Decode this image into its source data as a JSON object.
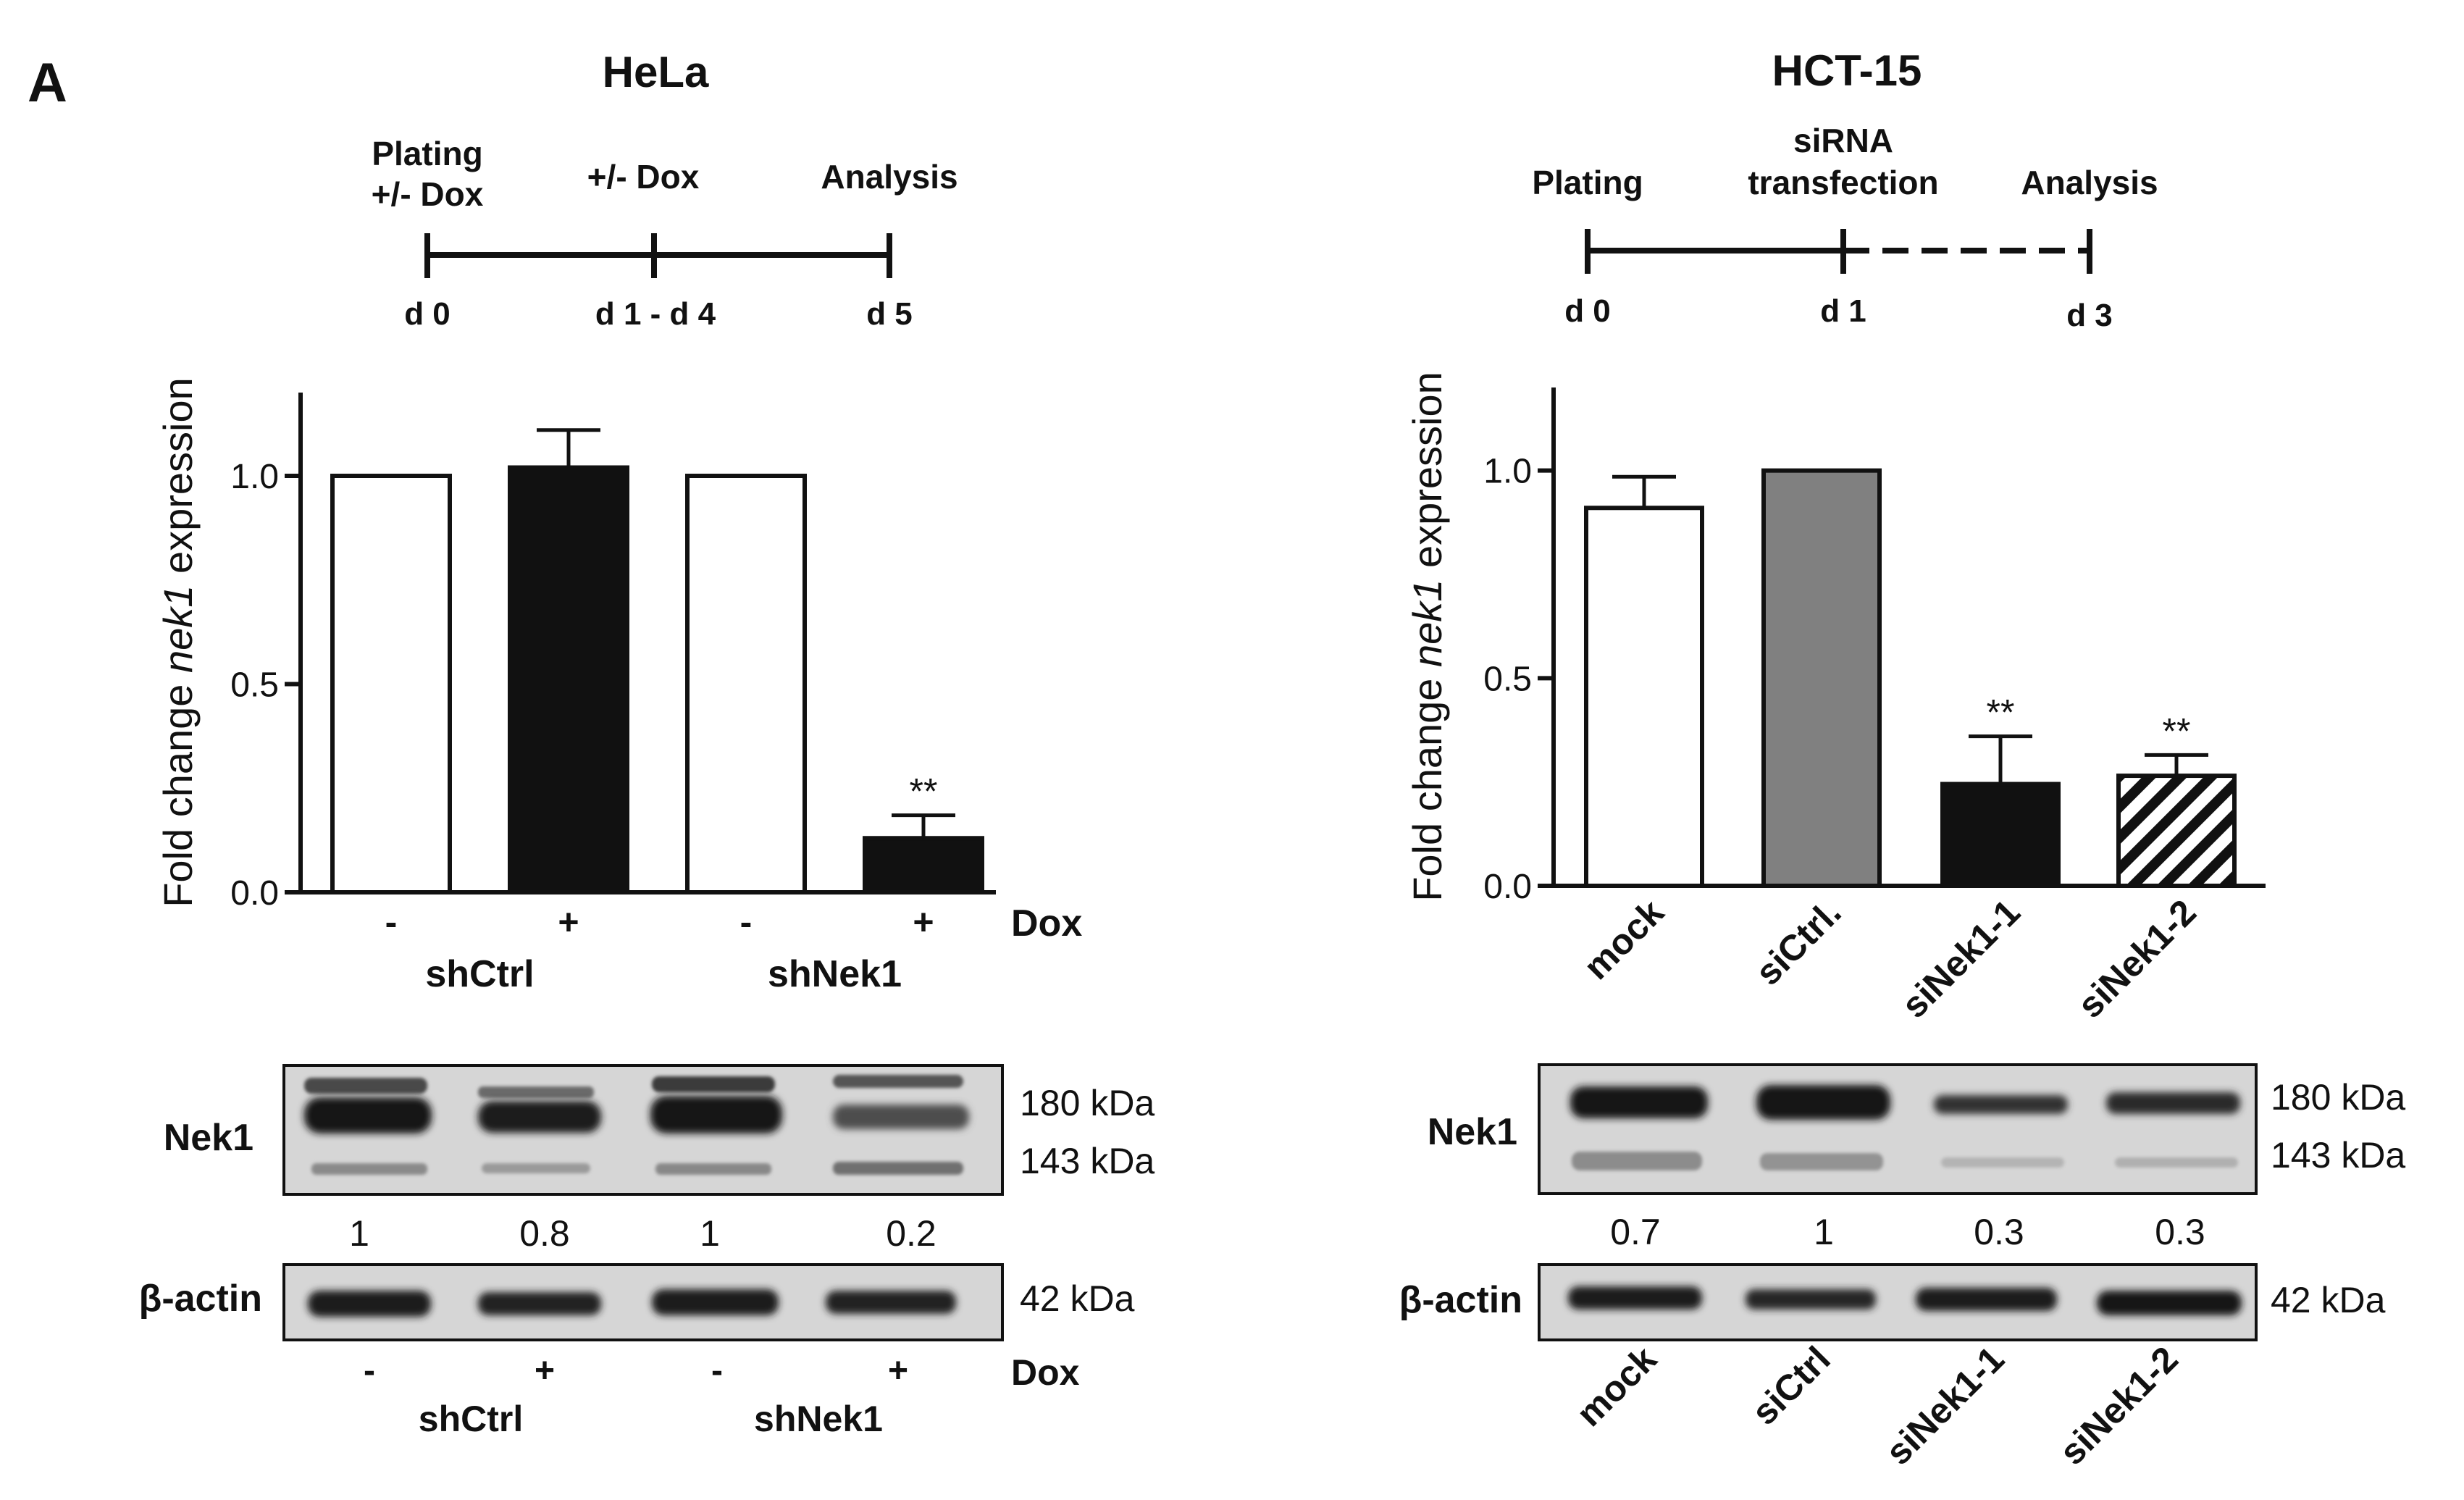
{
  "figure": {
    "panel_letter": "A",
    "colors": {
      "ink": "#111111",
      "bar_grey": "#808080",
      "blot_bg": "#d6d6d6",
      "band": "#151515"
    }
  },
  "hela": {
    "title": "HeLa",
    "timeline": {
      "events": [
        {
          "line1": "Plating",
          "line2": "+/- Dox",
          "day": "d 0"
        },
        {
          "line1": "+/- Dox",
          "line2": "",
          "day": "d 1 - d 4"
        },
        {
          "line1": "Analysis",
          "line2": "",
          "day": "d 5"
        }
      ],
      "segments": [
        "solid",
        "solid"
      ]
    },
    "blot": {
      "nek1_label": "Nek1",
      "actin_label": "β-actin",
      "kda_180": "180 kDa",
      "kda_143": "143 kDa",
      "kda_42": "42 kDa",
      "quant": [
        "1",
        "0.8",
        "1",
        "0.2"
      ],
      "dox_signs": [
        "-",
        "+",
        "-",
        "+"
      ],
      "dox_label": "Dox",
      "groups": [
        "shCtrl",
        "shNek1"
      ]
    }
  },
  "hct": {
    "title": "HCT-15",
    "timeline": {
      "events": [
        {
          "line1": "Plating",
          "line2": "",
          "day": "d 0"
        },
        {
          "line1": "siRNA",
          "line2": "transfection",
          "day": "d 1"
        },
        {
          "line1": "Analysis",
          "line2": "",
          "day": "d 3"
        }
      ],
      "segments": [
        "solid",
        "dashed"
      ]
    },
    "blot": {
      "nek1_label": "Nek1",
      "actin_label": "β-actin",
      "kda_180": "180 kDa",
      "kda_143": "143 kDa",
      "kda_42": "42 kDa",
      "quant": [
        "0.7",
        "1",
        "0.3",
        "0.3"
      ],
      "lanes": [
        "mock",
        "siCtrl",
        "siNek1-1",
        "siNek1-2"
      ]
    }
  },
  "chart_data": [
    {
      "type": "bar",
      "title": "",
      "ylabel": "Fold change nek1 expression",
      "ylabel_parts": [
        "Fold change ",
        "nek1",
        " expression"
      ],
      "ylim": [
        0,
        1.2
      ],
      "yticks": [
        0.0,
        0.5,
        1.0
      ],
      "ytick_labels": [
        "0.0",
        "0.5",
        "1.0"
      ],
      "categories": [
        "-",
        "+",
        "-",
        "+"
      ],
      "xlabel": "Dox",
      "groups": [
        {
          "name": "shCtrl",
          "categories": [
            "-",
            "+"
          ]
        },
        {
          "name": "shNek1",
          "categories": [
            "-",
            "+"
          ]
        }
      ],
      "values": [
        1.0,
        1.02,
        1.0,
        0.13
      ],
      "errors": [
        0,
        0.09,
        0,
        0.055
      ],
      "fills": [
        "white",
        "black",
        "white",
        "black"
      ],
      "significance": [
        "",
        "",
        "",
        "**"
      ]
    },
    {
      "type": "bar",
      "title": "",
      "ylabel": "Fold change nek1 expression",
      "ylabel_parts": [
        "Fold change ",
        "nek1",
        " expression"
      ],
      "ylim": [
        0,
        1.2
      ],
      "yticks": [
        0.0,
        0.5,
        1.0
      ],
      "ytick_labels": [
        "0.0",
        "0.5",
        "1.0"
      ],
      "categories": [
        "mock",
        "siCtrl.",
        "siNek1-1",
        "siNek1-2"
      ],
      "xlabel": "",
      "values": [
        0.91,
        1.0,
        0.245,
        0.265
      ],
      "errors": [
        0.075,
        0,
        0.115,
        0.05
      ],
      "fills": [
        "white",
        "grey",
        "black",
        "hatched"
      ],
      "significance": [
        "",
        "",
        "**",
        "**"
      ]
    }
  ]
}
